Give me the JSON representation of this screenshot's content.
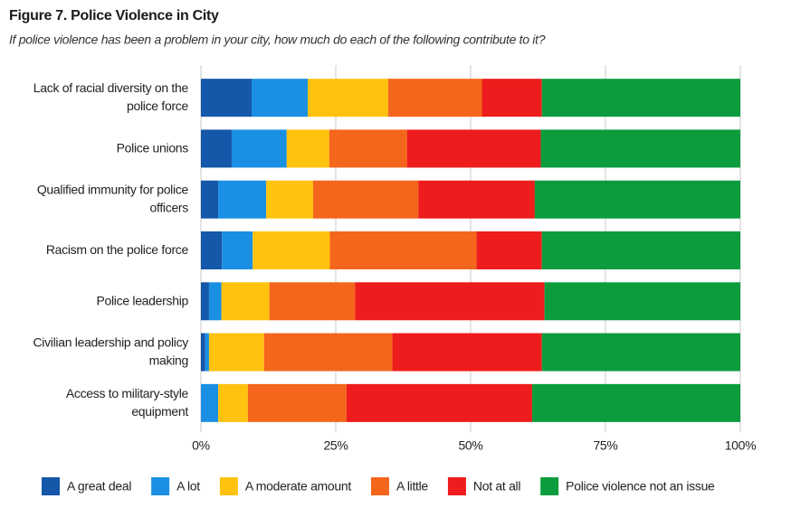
{
  "chart_data": {
    "type": "stacked-bar-horizontal",
    "title": "Figure 7. Police Violence in City",
    "subtitle": "If police violence has been a problem in your city, how much do each of the following contribute to it?",
    "categories": [
      "Lack of racial diversity on the police force",
      "Police unions",
      "Qualified immunity for police officers",
      "Racism on the police force",
      "Police leadership",
      "Civilian leadership and policy making",
      "Access to military-style equipment"
    ],
    "series": [
      {
        "name": "A great deal",
        "color": "#1557a8",
        "values": [
          9.4,
          5.7,
          3.2,
          3.9,
          1.5,
          0.8,
          0
        ]
      },
      {
        "name": "A lot",
        "color": "#1a8fe3",
        "values": [
          10.4,
          10.2,
          8.9,
          5.7,
          2.3,
          0.7,
          3.2
        ]
      },
      {
        "name": "A moderate amount",
        "color": "#ffc20e",
        "values": [
          14.9,
          7.9,
          8.7,
          14.3,
          8.9,
          10.2,
          5.5
        ]
      },
      {
        "name": "A little",
        "color": "#f4661b",
        "values": [
          17.4,
          14.4,
          19.5,
          27.2,
          15.9,
          23.8,
          18.3
        ]
      },
      {
        "name": "Not at all",
        "color": "#ee1c1c",
        "values": [
          11.1,
          24.8,
          21.6,
          12.1,
          35.1,
          27.7,
          34.4
        ]
      },
      {
        "name": "Police violence not an issue",
        "color": "#0c9c3e",
        "values": [
          36.8,
          37.0,
          38.1,
          36.8,
          36.3,
          36.8,
          38.6
        ]
      }
    ],
    "xlim": [
      0,
      100
    ],
    "xticks": [
      {
        "value": 0,
        "label": "0%"
      },
      {
        "value": 25,
        "label": "25%"
      },
      {
        "value": 50,
        "label": "50%"
      },
      {
        "value": 75,
        "label": "75%"
      },
      {
        "value": 100,
        "label": "100%"
      }
    ],
    "grid": true,
    "legend": "bottom"
  }
}
